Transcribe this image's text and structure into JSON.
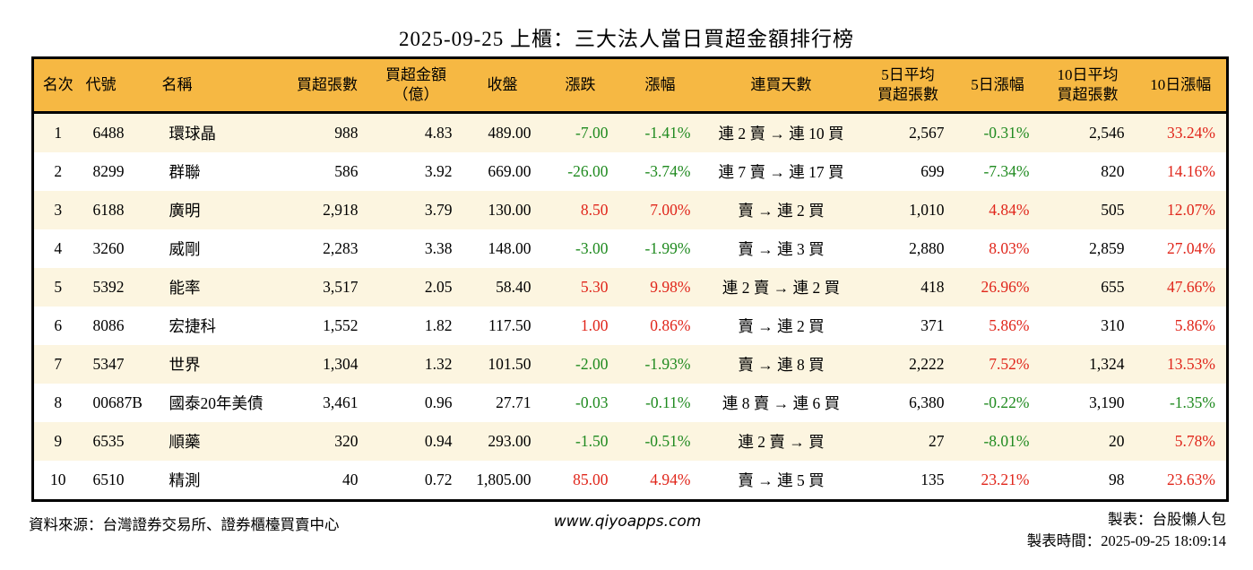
{
  "title": "2025-09-25 上櫃：三大法人當日買超金額排行榜",
  "theme": {
    "header_bg": "#F6B843",
    "row_alt_bg": "#FCF5E0",
    "up_red": "#E0251A",
    "down_green": "#1F8A1F"
  },
  "chart_data": {
    "type": "table",
    "title": "2025-09-25 上櫃：三大法人當日買超金額排行榜",
    "columns": [
      {
        "key": "rank",
        "label": "名次"
      },
      {
        "key": "code",
        "label": "代號"
      },
      {
        "key": "name",
        "label": "名稱"
      },
      {
        "key": "buy_volume",
        "label": "買超張數"
      },
      {
        "key": "buy_amount",
        "label": "買超金額\n（億）"
      },
      {
        "key": "close",
        "label": "收盤"
      },
      {
        "key": "change",
        "label": "漲跌"
      },
      {
        "key": "change_pct",
        "label": "漲幅"
      },
      {
        "key": "streak",
        "label": "連買天數"
      },
      {
        "key": "avg5",
        "label": "5日平均\n買超張數"
      },
      {
        "key": "pct5",
        "label": "5日漲幅"
      },
      {
        "key": "avg10",
        "label": "10日平均\n買超張數"
      },
      {
        "key": "pct10",
        "label": "10日漲幅"
      }
    ],
    "rows": [
      {
        "rank": "1",
        "code": "6488",
        "name": "環球晶",
        "buy_volume": "988",
        "buy_amount": "4.83",
        "close": "489.00",
        "change": "-7.00",
        "change_pct": "-1.41%",
        "streak": "連 2 賣 → 連 10 買",
        "avg5": "2,567",
        "pct5": "-0.31%",
        "avg10": "2,546",
        "pct10": "33.24%"
      },
      {
        "rank": "2",
        "code": "8299",
        "name": "群聯",
        "buy_volume": "586",
        "buy_amount": "3.92",
        "close": "669.00",
        "change": "-26.00",
        "change_pct": "-3.74%",
        "streak": "連 7 賣 → 連 17 買",
        "avg5": "699",
        "pct5": "-7.34%",
        "avg10": "820",
        "pct10": "14.16%"
      },
      {
        "rank": "3",
        "code": "6188",
        "name": "廣明",
        "buy_volume": "2,918",
        "buy_amount": "3.79",
        "close": "130.00",
        "change": "8.50",
        "change_pct": "7.00%",
        "streak": "賣 → 連 2 買",
        "avg5": "1,010",
        "pct5": "4.84%",
        "avg10": "505",
        "pct10": "12.07%"
      },
      {
        "rank": "4",
        "code": "3260",
        "name": "威剛",
        "buy_volume": "2,283",
        "buy_amount": "3.38",
        "close": "148.00",
        "change": "-3.00",
        "change_pct": "-1.99%",
        "streak": "賣 → 連 3 買",
        "avg5": "2,880",
        "pct5": "8.03%",
        "avg10": "2,859",
        "pct10": "27.04%"
      },
      {
        "rank": "5",
        "code": "5392",
        "name": "能率",
        "buy_volume": "3,517",
        "buy_amount": "2.05",
        "close": "58.40",
        "change": "5.30",
        "change_pct": "9.98%",
        "streak": "連 2 賣 → 連 2 買",
        "avg5": "418",
        "pct5": "26.96%",
        "avg10": "655",
        "pct10": "47.66%"
      },
      {
        "rank": "6",
        "code": "8086",
        "name": "宏捷科",
        "buy_volume": "1,552",
        "buy_amount": "1.82",
        "close": "117.50",
        "change": "1.00",
        "change_pct": "0.86%",
        "streak": "賣 → 連 2 買",
        "avg5": "371",
        "pct5": "5.86%",
        "avg10": "310",
        "pct10": "5.86%"
      },
      {
        "rank": "7",
        "code": "5347",
        "name": "世界",
        "buy_volume": "1,304",
        "buy_amount": "1.32",
        "close": "101.50",
        "change": "-2.00",
        "change_pct": "-1.93%",
        "streak": "賣 → 連 8 買",
        "avg5": "2,222",
        "pct5": "7.52%",
        "avg10": "1,324",
        "pct10": "13.53%"
      },
      {
        "rank": "8",
        "code": "00687B",
        "name": "國泰20年美債",
        "buy_volume": "3,461",
        "buy_amount": "0.96",
        "close": "27.71",
        "change": "-0.03",
        "change_pct": "-0.11%",
        "streak": "連 8 賣 → 連 6 買",
        "avg5": "6,380",
        "pct5": "-0.22%",
        "avg10": "3,190",
        "pct10": "-1.35%"
      },
      {
        "rank": "9",
        "code": "6535",
        "name": "順藥",
        "buy_volume": "320",
        "buy_amount": "0.94",
        "close": "293.00",
        "change": "-1.50",
        "change_pct": "-0.51%",
        "streak": "連 2 賣 → 買",
        "avg5": "27",
        "pct5": "-8.01%",
        "avg10": "20",
        "pct10": "5.78%"
      },
      {
        "rank": "10",
        "code": "6510",
        "name": "精測",
        "buy_volume": "40",
        "buy_amount": "0.72",
        "close": "1,805.00",
        "change": "85.00",
        "change_pct": "4.94%",
        "streak": "賣 → 連 5 買",
        "avg5": "135",
        "pct5": "23.21%",
        "avg10": "98",
        "pct10": "23.63%"
      }
    ]
  },
  "footer": {
    "source": "資料來源：台灣證券交易所、證券櫃檯買賣中心",
    "site": "www.qiyoapps.com",
    "maker": "製表：台股懶人包",
    "made_time": "製表時間：2025-09-25 18:09:14"
  }
}
